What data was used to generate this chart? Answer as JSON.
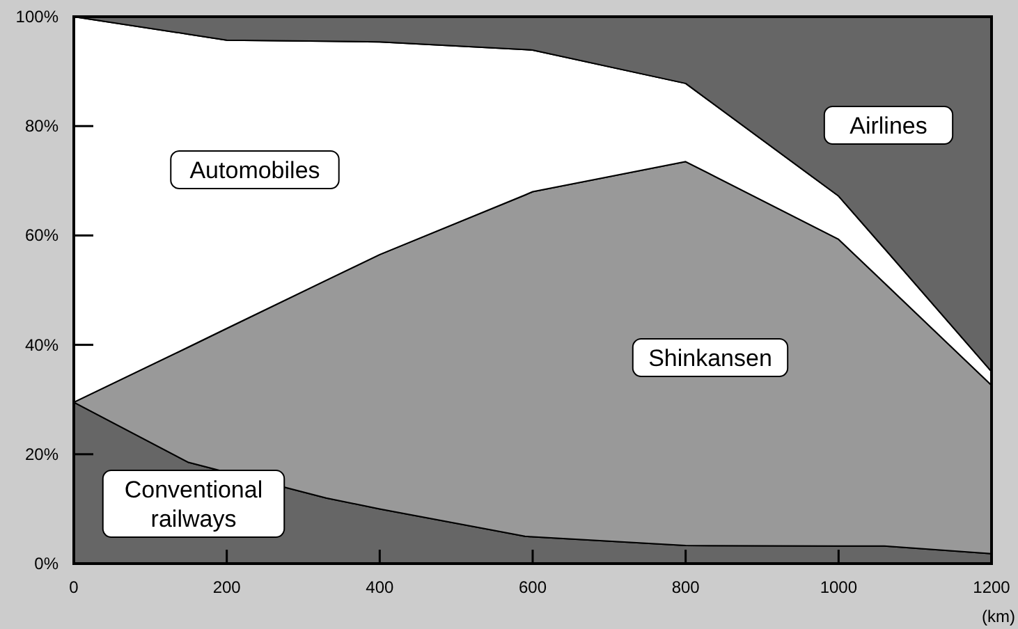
{
  "chart_data": {
    "type": "area",
    "stacked": true,
    "xlabel": "(km)",
    "x": [
      0,
      150,
      200,
      330,
      400,
      590,
      600,
      800,
      1000,
      1060,
      1200
    ],
    "xlim": [
      0,
      1200
    ],
    "xticks": [
      0,
      200,
      400,
      600,
      800,
      1000,
      1200
    ],
    "ylim": [
      0,
      100
    ],
    "yticks": [
      {
        "value": 0,
        "label": "0%"
      },
      {
        "value": 20,
        "label": "20%"
      },
      {
        "value": 40,
        "label": "40%"
      },
      {
        "value": 60,
        "label": "60%"
      },
      {
        "value": 80,
        "label": "80%"
      },
      {
        "value": 100,
        "label": "100%"
      }
    ],
    "series": [
      {
        "name": "Conventional railways",
        "color": "#666666",
        "values": [
          29.5,
          18.5,
          16.7,
          12,
          10,
          5,
          4.9,
          3.3,
          3.2,
          3.2,
          1.8
        ]
      },
      {
        "name": "Shinkansen",
        "color": "#999999",
        "values": [
          0,
          21.1,
          26.3,
          39.8,
          46.5,
          62.4,
          63.1,
          70.2,
          56.1,
          48.1,
          30.8
        ]
      },
      {
        "name": "Automobiles",
        "color": "#ffffff",
        "values": [
          70.5,
          57.2,
          52.7,
          43.7,
          38.9,
          26.6,
          25.9,
          14.3,
          7.9,
          6.3,
          2.5
        ]
      },
      {
        "name": "Airlines",
        "color": "#666666",
        "values": [
          0,
          3.2,
          4.3,
          4.5,
          4.6,
          6,
          6.1,
          12.2,
          32.8,
          42.4,
          64.9
        ]
      }
    ]
  }
}
